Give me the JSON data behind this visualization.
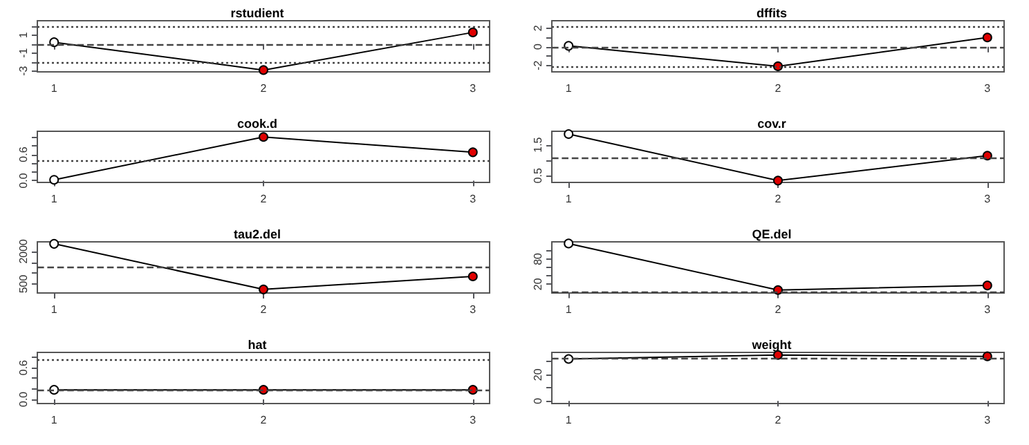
{
  "chart_data": [
    {
      "type": "line",
      "title": "rstudient",
      "x": [
        1,
        2,
        3
      ],
      "xlim": [
        0.92,
        3.08
      ],
      "xticks": [
        1,
        2,
        3
      ],
      "ylim": [
        -3.1,
        2.6
      ],
      "yticks": [
        -3,
        {
          "value": -2,
          "label": null
        },
        -1,
        {
          "value": 0,
          "label": null
        },
        1,
        {
          "value": 2,
          "label": null
        }
      ],
      "marker": "circle",
      "line_style": "solid",
      "series": [
        {
          "color": "#000000",
          "colors": [
            "#ffffff",
            "#e00000",
            "#e00000"
          ],
          "values": [
            0.2,
            -2.9,
            1.3
          ]
        }
      ],
      "ref_lines": [
        {
          "axis": "y",
          "value": 0,
          "line_style": "dashed",
          "color": "#444444"
        },
        {
          "axis": "y",
          "value": 2,
          "line_style": "dotted",
          "color": "#444444"
        },
        {
          "axis": "y",
          "value": -2,
          "line_style": "dotted",
          "color": "#444444"
        }
      ]
    },
    {
      "type": "line",
      "title": "dffits",
      "x": [
        1,
        2,
        3
      ],
      "xlim": [
        0.92,
        3.08
      ],
      "xticks": [
        1,
        2,
        3
      ],
      "ylim": [
        -2.7,
        2.8
      ],
      "yticks": [
        -2,
        {
          "value": -1,
          "label": null
        },
        0,
        {
          "value": 1,
          "label": null
        },
        2
      ],
      "marker": "circle",
      "line_style": "solid",
      "series": [
        {
          "color": "#000000",
          "colors": [
            "#ffffff",
            "#e00000",
            "#e00000"
          ],
          "values": [
            0.1,
            -2.1,
            1.0
          ]
        }
      ],
      "ref_lines": [
        {
          "axis": "y",
          "value": 0,
          "line_style": "dashed",
          "color": "#444444"
        },
        {
          "axis": "y",
          "value": 2.2,
          "line_style": "dotted",
          "color": "#444444"
        },
        {
          "axis": "y",
          "value": -2.2,
          "line_style": "dotted",
          "color": "#444444"
        }
      ]
    },
    {
      "type": "line",
      "title": "cook.d",
      "x": [
        1,
        2,
        3
      ],
      "xlim": [
        0.92,
        3.08
      ],
      "xticks": [
        1,
        2,
        3
      ],
      "ylim": [
        -0.04,
        1.13
      ],
      "yticks": [
        {
          "value": 0,
          "label": "0.0"
        },
        {
          "value": 0.2,
          "label": null
        },
        {
          "value": 0.4,
          "label": null
        },
        0.6,
        {
          "value": 0.8,
          "label": null
        },
        {
          "value": 1,
          "label": null
        }
      ],
      "marker": "circle",
      "line_style": "solid",
      "series": [
        {
          "color": "#000000",
          "colors": [
            "#ffffff",
            "#e00000",
            "#e00000"
          ],
          "values": [
            0.02,
            1.0,
            0.65
          ]
        }
      ],
      "ref_lines": [
        {
          "axis": "y",
          "value": 0.47,
          "line_style": "dotted",
          "color": "#444444"
        }
      ]
    },
    {
      "type": "line",
      "title": "cov.r",
      "x": [
        1,
        2,
        3
      ],
      "xlim": [
        0.92,
        3.08
      ],
      "xticks": [
        1,
        2,
        3
      ],
      "ylim": [
        0.28,
        1.94
      ],
      "yticks": [
        0.5,
        {
          "value": 1,
          "label": null
        },
        1.5
      ],
      "marker": "circle",
      "line_style": "solid",
      "series": [
        {
          "color": "#000000",
          "colors": [
            "#ffffff",
            "#e00000",
            "#e00000"
          ],
          "values": [
            1.85,
            0.34,
            1.15
          ]
        }
      ],
      "ref_lines": [
        {
          "axis": "y",
          "value": 1.07,
          "line_style": "dashed",
          "color": "#444444"
        }
      ]
    },
    {
      "type": "line",
      "title": "tau2.del",
      "x": [
        1,
        2,
        3
      ],
      "xlim": [
        0.92,
        3.08
      ],
      "xticks": [
        1,
        2,
        3
      ],
      "ylim": [
        85,
        2440
      ],
      "yticks": [
        500,
        {
          "value": 1000,
          "label": null
        },
        {
          "value": 1500,
          "label": null
        },
        2000
      ],
      "marker": "circle",
      "line_style": "solid",
      "series": [
        {
          "color": "#000000",
          "colors": [
            "#ffffff",
            "#e00000",
            "#e00000"
          ],
          "values": [
            2350,
            250,
            850
          ]
        }
      ],
      "ref_lines": [
        {
          "axis": "y",
          "value": 1250,
          "line_style": "dashed",
          "color": "#444444"
        }
      ]
    },
    {
      "type": "line",
      "title": "QE.del",
      "x": [
        1,
        2,
        3
      ],
      "xlim": [
        0.92,
        3.08
      ],
      "xticks": [
        1,
        2,
        3
      ],
      "ylim": [
        -1,
        121
      ],
      "yticks": [
        20,
        {
          "value": 40,
          "label": null
        },
        {
          "value": 60,
          "label": null
        },
        80,
        {
          "value": 100,
          "label": null
        }
      ],
      "marker": "circle",
      "line_style": "solid",
      "series": [
        {
          "color": "#000000",
          "colors": [
            "#ffffff",
            "#e00000",
            "#e00000"
          ],
          "values": [
            117,
            6,
            17
          ]
        }
      ],
      "ref_lines": [
        {
          "axis": "y",
          "value": 0,
          "line_style": "dashed",
          "color": "#444444"
        }
      ]
    },
    {
      "type": "line",
      "title": "hat",
      "x": [
        1,
        2,
        3
      ],
      "xlim": [
        0.92,
        3.08
      ],
      "xticks": [
        1,
        2,
        3
      ],
      "ylim": [
        -0.08,
        0.89
      ],
      "yticks": [
        {
          "value": 0,
          "label": "0.0"
        },
        {
          "value": 0.2,
          "label": null
        },
        {
          "value": 0.4,
          "label": null
        },
        0.6,
        {
          "value": 0.8,
          "label": null
        }
      ],
      "marker": "circle",
      "line_style": "solid",
      "series": [
        {
          "color": "#000000",
          "colors": [
            "#ffffff",
            "#e00000",
            "#e00000"
          ],
          "values": [
            0.18,
            0.18,
            0.18
          ]
        }
      ],
      "ref_lines": [
        {
          "axis": "y",
          "value": 0.18,
          "line_style": "dashed",
          "color": "#444444"
        },
        {
          "axis": "y",
          "value": 0.75,
          "line_style": "dotted",
          "color": "#444444"
        }
      ]
    },
    {
      "type": "line",
      "title": "weight",
      "x": [
        1,
        2,
        3
      ],
      "xlim": [
        0.92,
        3.08
      ],
      "xticks": [
        1,
        2,
        3
      ],
      "ylim": [
        -2,
        37
      ],
      "yticks": [
        0,
        {
          "value": 10,
          "label": null
        },
        20,
        {
          "value": 30,
          "label": null
        }
      ],
      "marker": "circle",
      "line_style": "solid",
      "series": [
        {
          "color": "#000000",
          "colors": [
            "#ffffff",
            "#e00000",
            "#e00000"
          ],
          "values": [
            32,
            35,
            34
          ]
        }
      ],
      "ref_lines": [
        {
          "axis": "y",
          "value": 33,
          "line_style": "dashed",
          "color": "#444444"
        }
      ]
    }
  ]
}
